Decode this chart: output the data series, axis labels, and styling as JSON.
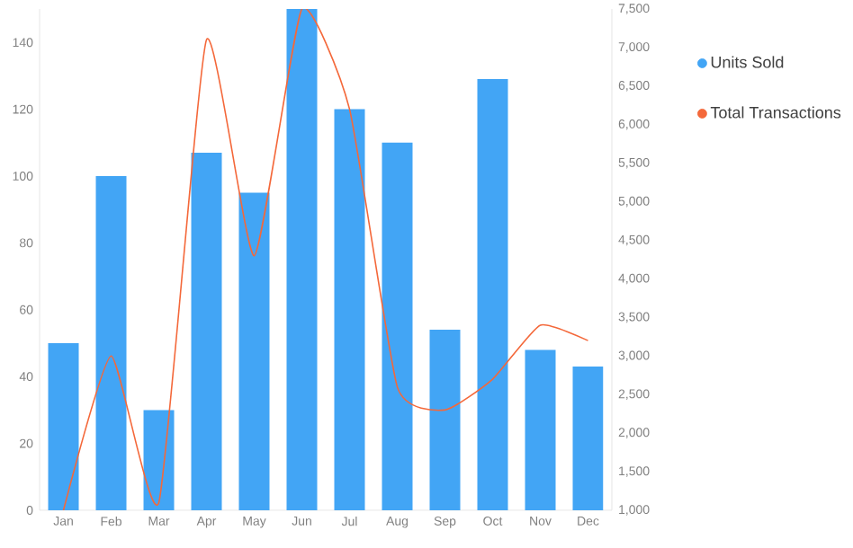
{
  "chart_data": {
    "type": "bar",
    "categories": [
      "Jan",
      "Feb",
      "Mar",
      "Apr",
      "May",
      "Jun",
      "Jul",
      "Aug",
      "Sep",
      "Oct",
      "Nov",
      "Dec"
    ],
    "series": [
      {
        "name": "Units Sold",
        "color": "#42a5f5",
        "values": [
          50,
          100,
          30,
          107,
          95,
          150,
          120,
          110,
          54,
          129,
          48,
          43
        ]
      },
      {
        "name": "Total Transactions",
        "type": "line",
        "axis": "y2",
        "color": "#f4683a",
        "values": [
          1000,
          3000,
          1100,
          7100,
          4300,
          7500,
          6200,
          2600,
          2300,
          2700,
          3400,
          3200
        ]
      }
    ],
    "ylim": [
      0,
      150
    ],
    "yticks": [
      0,
      20,
      40,
      60,
      80,
      100,
      120,
      140
    ],
    "y2lim": [
      1000,
      7500
    ],
    "y2ticks": [
      {
        "value": 1000,
        "label": "1,000"
      },
      {
        "value": 1500,
        "label": "1,500"
      },
      {
        "value": 2000,
        "label": "2,000"
      },
      {
        "value": 2500,
        "label": "2,500"
      },
      {
        "value": 3000,
        "label": "3,000"
      },
      {
        "value": 3500,
        "label": "3,500"
      },
      {
        "value": 4000,
        "label": "4,000"
      },
      {
        "value": 4500,
        "label": "4,500"
      },
      {
        "value": 5000,
        "label": "5,000"
      },
      {
        "value": 5500,
        "label": "5,500"
      },
      {
        "value": 6000,
        "label": "6,000"
      },
      {
        "value": 6500,
        "label": "6,500"
      },
      {
        "value": 7000,
        "label": "7,000"
      },
      {
        "value": 7500,
        "label": "7,500"
      }
    ],
    "legend": "top right",
    "grid": false
  }
}
